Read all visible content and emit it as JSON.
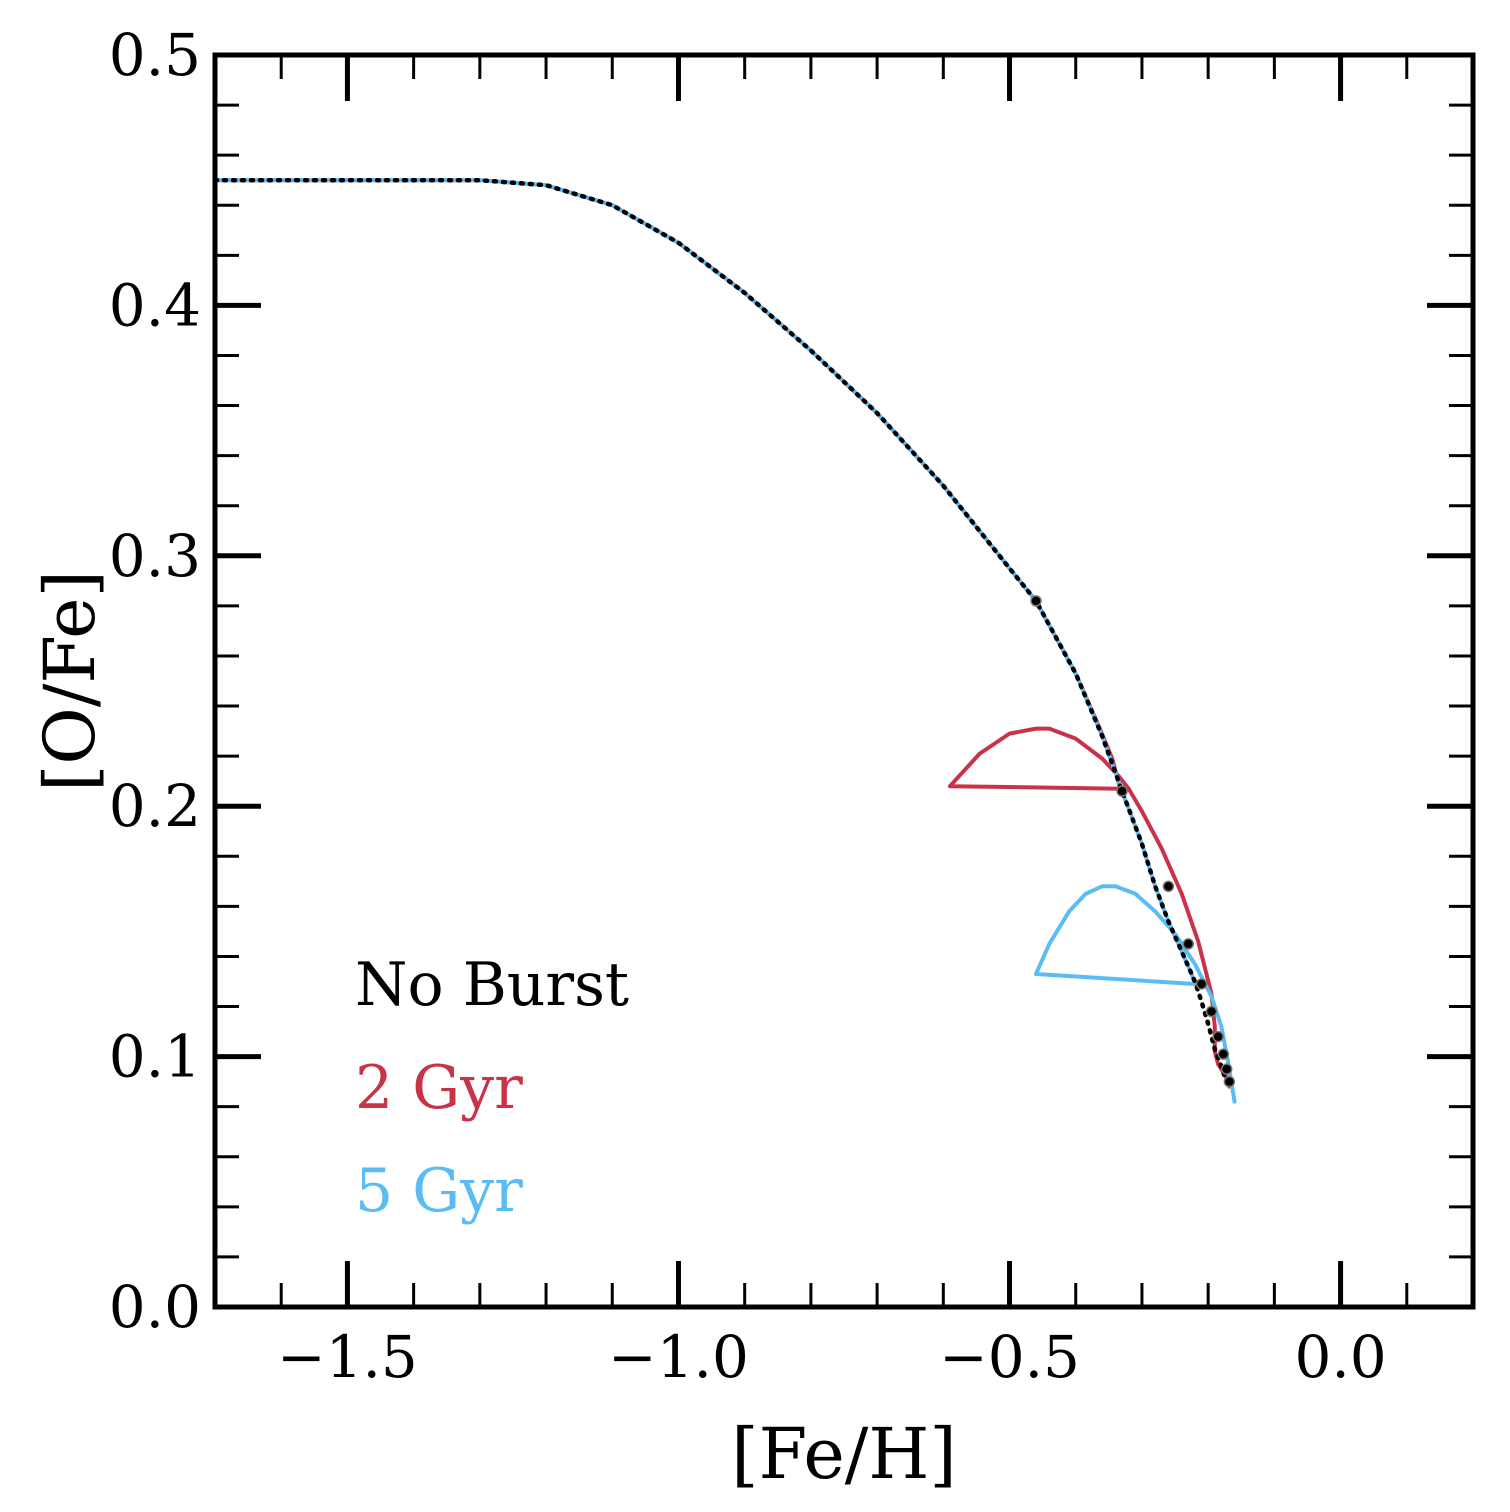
{
  "chart_data": {
    "type": "line",
    "xlabel": "[Fe/H]",
    "ylabel": "[O/Fe]",
    "xlim": [
      -1.7,
      0.2
    ],
    "ylim": [
      0.0,
      0.5
    ],
    "x_ticks": [
      {
        "value": -1.5,
        "label": "−1.5"
      },
      {
        "value": -1.0,
        "label": "−1.0"
      },
      {
        "value": -0.5,
        "label": "−0.5"
      },
      {
        "value": 0.0,
        "label": "0.0"
      }
    ],
    "y_ticks": [
      {
        "value": 0.0,
        "label": "0.0"
      },
      {
        "value": 0.1,
        "label": "0.1"
      },
      {
        "value": 0.2,
        "label": "0.2"
      },
      {
        "value": 0.3,
        "label": "0.3"
      },
      {
        "value": 0.4,
        "label": "0.4"
      },
      {
        "value": 0.5,
        "label": "0.5"
      }
    ],
    "x_minor_step": 0.1,
    "y_minor_step": 0.02,
    "legend_placement": "lower-left",
    "series": [
      {
        "name": "No Burst",
        "color": "#000000",
        "style": "dotted",
        "x": [
          -1.7,
          -1.3,
          -1.2,
          -1.1,
          -1.0,
          -0.9,
          -0.8,
          -0.7,
          -0.6,
          -0.5,
          -0.46,
          -0.4,
          -0.36,
          -0.33,
          -0.3,
          -0.28,
          -0.26,
          -0.24,
          -0.22,
          -0.21,
          -0.2,
          -0.19,
          -0.18,
          -0.175,
          -0.17
        ],
        "y": [
          0.45,
          0.45,
          0.448,
          0.44,
          0.425,
          0.405,
          0.382,
          0.357,
          0.328,
          0.295,
          0.282,
          0.253,
          0.228,
          0.206,
          0.185,
          0.168,
          0.154,
          0.142,
          0.13,
          0.122,
          0.113,
          0.103,
          0.096,
          0.092,
          0.088
        ],
        "markers": [
          {
            "x": -0.46,
            "y": 0.282
          },
          {
            "x": -0.33,
            "y": 0.206
          },
          {
            "x": -0.26,
            "y": 0.168
          },
          {
            "x": -0.23,
            "y": 0.145
          },
          {
            "x": -0.21,
            "y": 0.129
          },
          {
            "x": -0.195,
            "y": 0.118
          },
          {
            "x": -0.185,
            "y": 0.108
          },
          {
            "x": -0.177,
            "y": 0.101
          },
          {
            "x": -0.172,
            "y": 0.095
          },
          {
            "x": -0.168,
            "y": 0.09
          }
        ]
      },
      {
        "name": "2 Gyr",
        "color": "#c8334a",
        "style": "solid",
        "x": [
          -1.7,
          -1.3,
          -1.2,
          -1.1,
          -1.0,
          -0.9,
          -0.8,
          -0.7,
          -0.6,
          -0.5,
          -0.46,
          -0.4,
          -0.362,
          -0.345,
          -0.333,
          -0.59,
          -0.545,
          -0.5,
          -0.46,
          -0.44,
          -0.4,
          -0.36,
          -0.335,
          -0.32,
          -0.3,
          -0.27,
          -0.24,
          -0.215,
          -0.195,
          -0.19,
          -0.19,
          -0.185,
          -0.175,
          -0.17,
          -0.168
        ],
        "y": [
          0.45,
          0.45,
          0.448,
          0.44,
          0.425,
          0.405,
          0.382,
          0.357,
          0.328,
          0.295,
          0.282,
          0.253,
          0.23,
          0.219,
          0.207,
          0.208,
          0.221,
          0.229,
          0.231,
          0.231,
          0.227,
          0.219,
          0.212,
          0.207,
          0.198,
          0.183,
          0.165,
          0.146,
          0.125,
          0.112,
          0.102,
          0.097,
          0.093,
          0.09,
          0.088
        ]
      },
      {
        "name": "5 Gyr",
        "color": "#5bbcf3",
        "style": "solid",
        "x": [
          -1.7,
          -1.3,
          -1.2,
          -1.1,
          -1.0,
          -0.9,
          -0.8,
          -0.7,
          -0.6,
          -0.5,
          -0.46,
          -0.4,
          -0.36,
          -0.33,
          -0.3,
          -0.28,
          -0.26,
          -0.24,
          -0.225,
          -0.22,
          -0.46,
          -0.44,
          -0.41,
          -0.385,
          -0.36,
          -0.34,
          -0.31,
          -0.28,
          -0.25,
          -0.22,
          -0.195,
          -0.18,
          -0.17,
          -0.165,
          -0.16
        ],
        "y": [
          0.45,
          0.45,
          0.448,
          0.44,
          0.425,
          0.405,
          0.382,
          0.357,
          0.328,
          0.295,
          0.282,
          0.253,
          0.228,
          0.206,
          0.185,
          0.168,
          0.154,
          0.142,
          0.133,
          0.129,
          0.133,
          0.145,
          0.158,
          0.165,
          0.168,
          0.168,
          0.165,
          0.158,
          0.149,
          0.137,
          0.124,
          0.112,
          0.098,
          0.09,
          0.082
        ]
      }
    ]
  }
}
